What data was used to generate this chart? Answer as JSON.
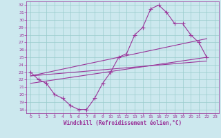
{
  "title": "",
  "xlabel": "Windchill (Refroidissement éolien,°C)",
  "ylabel": "",
  "bg_color": "#cce8ee",
  "line_color": "#993399",
  "xlim": [
    -0.5,
    23.5
  ],
  "ylim": [
    17.5,
    32.5
  ],
  "yticks": [
    18,
    19,
    20,
    21,
    22,
    23,
    24,
    25,
    26,
    27,
    28,
    29,
    30,
    31,
    32
  ],
  "xticks": [
    0,
    1,
    2,
    3,
    4,
    5,
    6,
    7,
    8,
    9,
    10,
    11,
    12,
    13,
    14,
    15,
    16,
    17,
    18,
    19,
    20,
    21,
    22,
    23
  ],
  "curve_x": [
    0,
    1,
    2,
    3,
    4,
    5,
    6,
    7,
    8,
    9,
    10,
    11,
    12,
    13,
    14,
    15,
    16,
    17,
    18,
    19,
    20,
    21,
    22
  ],
  "curve_y": [
    23,
    22,
    21.5,
    20,
    19.5,
    18.5,
    18,
    18,
    19.5,
    21.5,
    23,
    25,
    25.5,
    28,
    29,
    31.5,
    32,
    31,
    29.5,
    29.5,
    28,
    27,
    25
  ],
  "line1_x": [
    0,
    22
  ],
  "line1_y": [
    21.5,
    25
  ],
  "line2_x": [
    0,
    22
  ],
  "line2_y": [
    22.5,
    24.5
  ],
  "line3_x": [
    0,
    22
  ],
  "line3_y": [
    22.5,
    27.5
  ],
  "figsize": [
    3.2,
    2.0
  ],
  "dpi": 100
}
